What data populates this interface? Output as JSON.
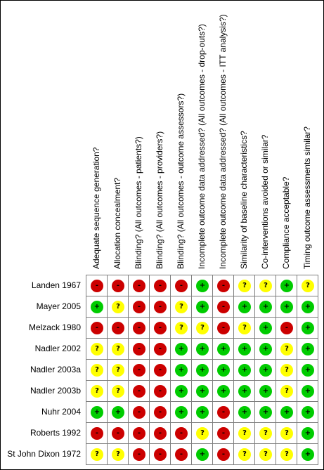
{
  "colors": {
    "low": "#00cc00",
    "unclear": "#ffff00",
    "high": "#cc0000"
  },
  "symbols": {
    "low": "+",
    "unclear": "?",
    "high": "-"
  },
  "columns": [
    "Adequate sequence generation?",
    "Allocation concealment?",
    "Blinding? (All outcomes - patients?)",
    "Blinding? (All outcomes - providers?)",
    "Blinding? (All outcomes - outcome assessors?)",
    "Incomplete outcome data addressed? (All outcomes - drop-outs?)",
    "Incomplete outcome data addressed? (All outcomes - ITT analysis?)",
    "Similarity of baseline characteristics?",
    "Co-interventions avoided or similar?",
    "Compliance acceptable?",
    "Timing outcome assessments similar?"
  ],
  "rows": [
    {
      "study": "Landen 1967",
      "ratings": [
        "high",
        "high",
        "high",
        "high",
        "high",
        "low",
        "high",
        "unclear",
        "unclear",
        "low",
        "unclear"
      ]
    },
    {
      "study": "Mayer 2005",
      "ratings": [
        "low",
        "unclear",
        "high",
        "high",
        "unclear",
        "low",
        "high",
        "low",
        "low",
        "low",
        "low"
      ]
    },
    {
      "study": "Melzack 1980",
      "ratings": [
        "high",
        "high",
        "high",
        "high",
        "unclear",
        "unclear",
        "high",
        "unclear",
        "low",
        "high",
        "low"
      ]
    },
    {
      "study": "Nadler 2002",
      "ratings": [
        "unclear",
        "unclear",
        "high",
        "high",
        "low",
        "low",
        "low",
        "low",
        "low",
        "unclear",
        "low"
      ]
    },
    {
      "study": "Nadler 2003a",
      "ratings": [
        "unclear",
        "unclear",
        "high",
        "high",
        "low",
        "low",
        "low",
        "low",
        "low",
        "unclear",
        "low"
      ]
    },
    {
      "study": "Nadler 2003b",
      "ratings": [
        "unclear",
        "unclear",
        "high",
        "high",
        "low",
        "low",
        "low",
        "low",
        "low",
        "unclear",
        "low"
      ]
    },
    {
      "study": "Nuhr 2004",
      "ratings": [
        "low",
        "low",
        "high",
        "high",
        "low",
        "low",
        "high",
        "low",
        "low",
        "low",
        "low"
      ]
    },
    {
      "study": "Roberts 1992",
      "ratings": [
        "high",
        "high",
        "high",
        "high",
        "high",
        "unclear",
        "high",
        "unclear",
        "unclear",
        "unclear",
        "low"
      ]
    },
    {
      "study": "St John Dixon 1972",
      "ratings": [
        "unclear",
        "unclear",
        "high",
        "high",
        "high",
        "low",
        "high",
        "unclear",
        "unclear",
        "unclear",
        "low"
      ]
    }
  ]
}
